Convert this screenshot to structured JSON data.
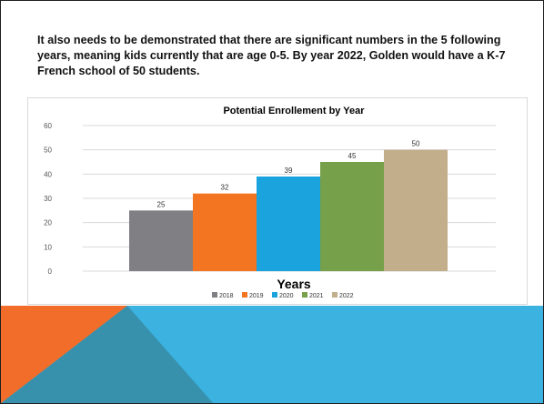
{
  "slide": {
    "body_text": "It also needs to be demonstrated that there are significant numbers in the 5 following years, meaning kids currently that are age 0-5. By year 2022, Golden would have a K-7 French school of 50 students."
  },
  "chart_data": {
    "type": "bar",
    "title": "Potential Enrollement by Year",
    "xlabel": "Years",
    "ylabel": "",
    "categories": [
      "2018",
      "2019",
      "2020",
      "2021",
      "2022"
    ],
    "values": [
      25,
      32,
      39,
      45,
      50
    ],
    "data_labels": [
      "25",
      "32",
      "39",
      "45",
      "50"
    ],
    "colors": [
      "#7f7f84",
      "#f47521",
      "#1aa3dd",
      "#76a04a",
      "#c3ae8c"
    ],
    "ylim": [
      0,
      60
    ],
    "yticks": [
      "0",
      "10",
      "20",
      "30",
      "40",
      "50",
      "60"
    ],
    "grid": true,
    "legend_position": "bottom"
  },
  "colors": {
    "band_blue": "#3bb2df",
    "accent_orange": "#f26d2a",
    "accent_teal": "#3791ad"
  }
}
